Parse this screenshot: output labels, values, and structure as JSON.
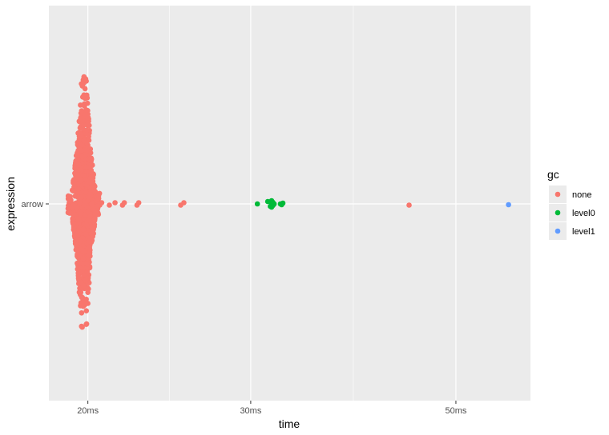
{
  "chart_data": {
    "type": "scatter",
    "subtype": "beeswarm",
    "title": "",
    "xlabel": "time",
    "ylabel": "expression",
    "x_scale": "log",
    "x_unit": "ms",
    "xlim": [
      18.15,
      60.2
    ],
    "x_ticks": [
      20,
      30,
      50
    ],
    "x_tick_labels": [
      "20ms",
      "30ms",
      "50ms"
    ],
    "categories": [
      "arrow"
    ],
    "grid": true,
    "legend": {
      "title": "gc",
      "position": "right",
      "entries": [
        {
          "name": "none",
          "color": "#F8766D"
        },
        {
          "name": "level0",
          "color": "#00BA38"
        },
        {
          "name": "level1",
          "color": "#619CFF"
        }
      ]
    },
    "series": [
      {
        "name": "none",
        "color": "#F8766D",
        "count_approx": 1050,
        "dense_cluster_range_ms": [
          19.3,
          20.6
        ],
        "dense_cluster_peak_ms": 19.8,
        "outliers_ms": [
          20.6,
          20.7,
          21.1,
          21.4,
          21.8,
          21.9,
          22.6,
          22.7,
          25.2,
          25.4,
          44.5
        ]
      },
      {
        "name": "level0",
        "color": "#00BA38",
        "values_ms": [
          30.5,
          31.3,
          31.5,
          31.6,
          31.6,
          31.6,
          31.7,
          31.7,
          31.7,
          31.8,
          32.3,
          32.4,
          32.5
        ]
      },
      {
        "name": "level1",
        "color": "#619CFF",
        "values_ms": [
          57.0
        ]
      }
    ]
  }
}
